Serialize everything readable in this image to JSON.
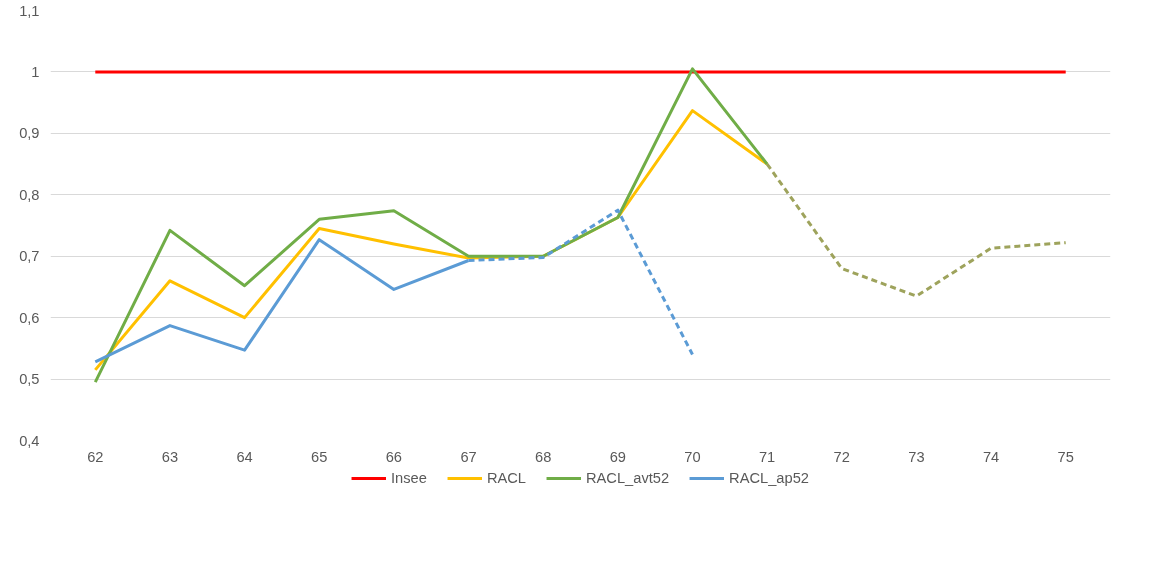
{
  "chart_data": {
    "type": "line",
    "categories": [
      "62",
      "63",
      "64",
      "65",
      "66",
      "67",
      "68",
      "69",
      "70",
      "71",
      "72",
      "73",
      "74",
      "75"
    ],
    "ylim": [
      0.4,
      1.1
    ],
    "yticks": [
      {
        "value": 0.4,
        "label": "0,4"
      },
      {
        "value": 0.5,
        "label": "0,5"
      },
      {
        "value": 0.6,
        "label": "0,6"
      },
      {
        "value": 0.7,
        "label": "0,7"
      },
      {
        "value": 0.8,
        "label": "0,8"
      },
      {
        "value": 0.9,
        "label": "0,9"
      },
      {
        "value": 1,
        "label": "1"
      },
      {
        "value": 1.1,
        "label": "1,1"
      }
    ],
    "grid": "y",
    "legend": "bottom",
    "line_style": "solid",
    "series": [
      {
        "name": "Insee",
        "color": "#ff0000",
        "values": [
          1,
          1,
          1,
          1,
          1,
          1,
          1,
          1,
          1,
          1,
          1,
          1,
          1,
          1
        ]
      },
      {
        "name": "RACL",
        "color": "#ffc000",
        "values": [
          0.515,
          0.66,
          0.6,
          0.745,
          0.72,
          0.697,
          0.7,
          0.763,
          0.937,
          0.85,
          null,
          null,
          null,
          null
        ]
      },
      {
        "name": "RACL_avt52",
        "color": "#70ad47",
        "values": [
          0.495,
          0.742,
          0.652,
          0.76,
          0.774,
          0.7,
          0.7,
          0.763,
          1.005,
          0.85,
          null,
          null,
          null,
          null
        ]
      },
      {
        "name": "RACL_ap52",
        "color": "#5b9bd5",
        "values": [
          0.528,
          0.587,
          0.547,
          0.727,
          0.646,
          0.693,
          null,
          null,
          null,
          null,
          null,
          null,
          null,
          null
        ]
      },
      {
        "color": "#5b9bd5",
        "line_style": "dashed",
        "values": [
          null,
          null,
          null,
          null,
          null,
          0.693,
          0.698,
          0.775,
          0.54,
          null,
          null,
          null,
          null,
          null
        ]
      },
      {
        "color": "#9ea35c",
        "line_style": "dashed",
        "values": [
          null,
          null,
          null,
          null,
          null,
          null,
          null,
          null,
          null,
          0.85,
          0.68,
          0.635,
          0.713,
          0.722
        ]
      }
    ]
  }
}
